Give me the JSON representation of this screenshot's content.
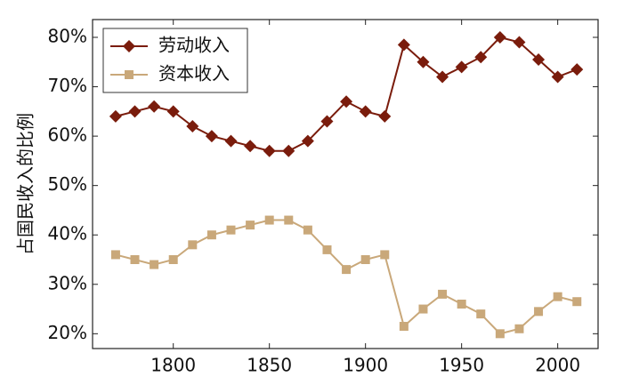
{
  "chart_data": {
    "type": "line",
    "y_label": "占国民收入的比例",
    "x": [
      1770,
      1780,
      1790,
      1800,
      1810,
      1820,
      1830,
      1840,
      1850,
      1860,
      1870,
      1880,
      1890,
      1900,
      1910,
      1920,
      1930,
      1940,
      1950,
      1960,
      1970,
      1980,
      1990,
      2000,
      2010
    ],
    "series": [
      {
        "name": "劳动收入",
        "color": "#7a1c0c",
        "marker": "diamond",
        "values": [
          64,
          65,
          66,
          65,
          62,
          60,
          59,
          58,
          57,
          57,
          59,
          63,
          67,
          65,
          64,
          78.5,
          75,
          72,
          74,
          76,
          80,
          79,
          75.5,
          72,
          73.5
        ]
      },
      {
        "name": "资本收入",
        "color": "#c9a87a",
        "marker": "square",
        "values": [
          36,
          35,
          34,
          35,
          38,
          40,
          41,
          42,
          43,
          43,
          41,
          37,
          33,
          35,
          36,
          21.5,
          25,
          28,
          26,
          24,
          20,
          21,
          24.5,
          27.5,
          26.5
        ]
      }
    ],
    "xlim": [
      1758,
      2021
    ],
    "xticks": [
      1800,
      1850,
      1900,
      1950,
      2000
    ],
    "ylim": [
      17,
      83.6
    ],
    "yticks": [
      {
        "value": 20,
        "label": "20%"
      },
      {
        "value": 30,
        "label": "30%"
      },
      {
        "value": 40,
        "label": "40%"
      },
      {
        "value": 50,
        "label": "50%"
      },
      {
        "value": 60,
        "label": "60%"
      },
      {
        "value": 70,
        "label": "70%"
      },
      {
        "value": 80,
        "label": "80%"
      }
    ],
    "legend": "upper-left"
  }
}
